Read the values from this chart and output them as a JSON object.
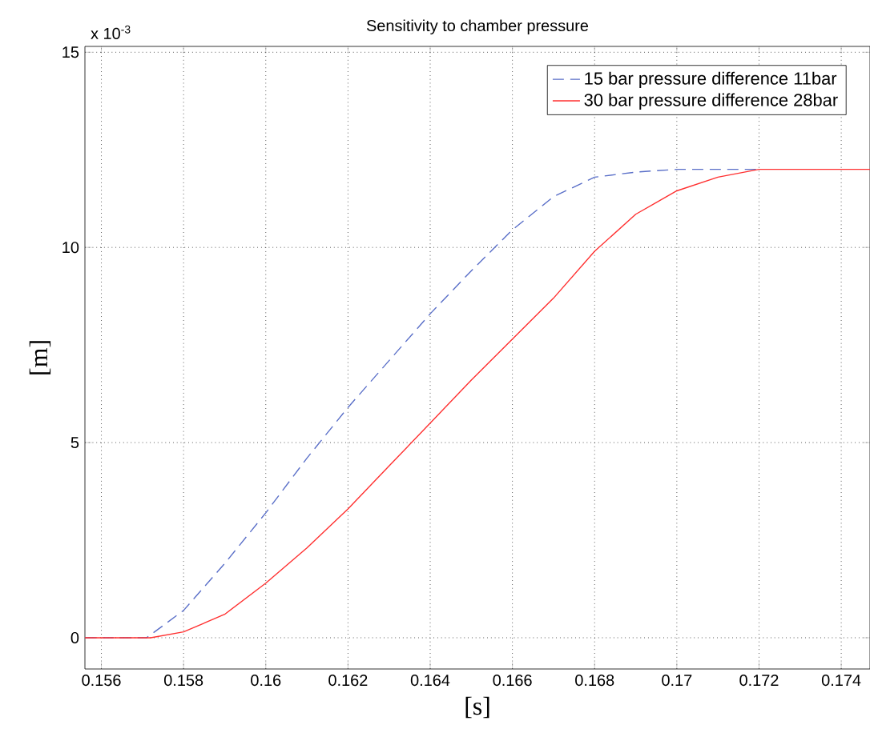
{
  "chart_data": {
    "type": "line",
    "title": "Sensitivity to chamber pressure",
    "xlabel": "[s]",
    "ylabel": "[m]",
    "annotations": [
      "x 10$^{-3}$"
    ],
    "xlim": [
      0.1556,
      0.1747
    ],
    "ylim": [
      -0.8,
      15.15
    ],
    "xticks": [
      0.156,
      0.158,
      0.16,
      0.162,
      0.164,
      0.166,
      0.168,
      0.17,
      0.172,
      0.174
    ],
    "yticks": [
      0,
      5,
      10,
      15
    ],
    "grid": true,
    "legend": "top right",
    "series": [
      {
        "name": "15 bar pressure difference 11bar",
        "color": "#5a6fc8",
        "line_style": "dashed",
        "x": [
          0.1556,
          0.1571,
          0.158,
          0.159,
          0.16,
          0.161,
          0.162,
          0.163,
          0.164,
          0.165,
          0.166,
          0.167,
          0.168,
          0.169,
          0.17,
          0.172
        ],
        "values": [
          0,
          0,
          0.7,
          1.9,
          3.2,
          4.6,
          5.9,
          7.1,
          8.3,
          9.4,
          10.45,
          11.3,
          11.8,
          11.93,
          12.0,
          12.0
        ]
      },
      {
        "name": "30 bar pressure difference 28bar",
        "color": "#ff3030",
        "line_style": "solid",
        "x": [
          0.1556,
          0.1572,
          0.158,
          0.159,
          0.16,
          0.161,
          0.162,
          0.163,
          0.164,
          0.165,
          0.166,
          0.167,
          0.168,
          0.169,
          0.17,
          0.171,
          0.172,
          0.1747
        ],
        "values": [
          0,
          0,
          0.15,
          0.6,
          1.4,
          2.3,
          3.3,
          4.4,
          5.5,
          6.6,
          7.65,
          8.7,
          9.9,
          10.85,
          11.45,
          11.8,
          12.0,
          12.0
        ]
      }
    ]
  }
}
